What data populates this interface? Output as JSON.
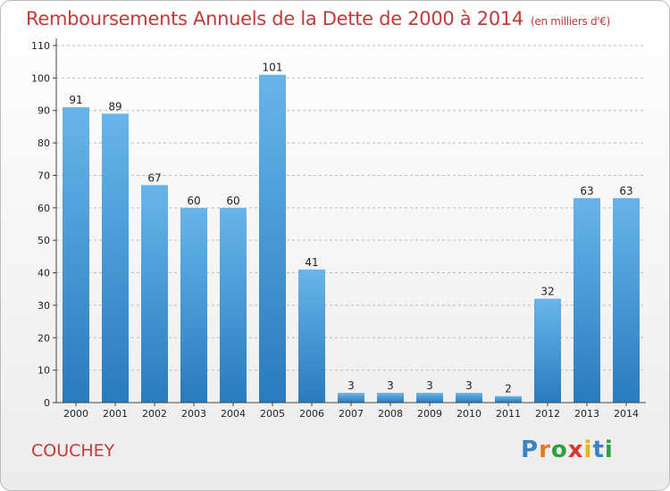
{
  "chart_data": {
    "type": "bar",
    "title": "Remboursements Annuels de la Dette de 2000 à 2014",
    "subtitle": "(en milliers d'€)",
    "categories": [
      "2000",
      "2001",
      "2002",
      "2003",
      "2004",
      "2005",
      "2006",
      "2007",
      "2008",
      "2009",
      "2010",
      "2011",
      "2012",
      "2013",
      "2014"
    ],
    "values": [
      91,
      89,
      67,
      60,
      60,
      101,
      41,
      3,
      3,
      3,
      3,
      2,
      32,
      63,
      63
    ],
    "ylim": [
      0,
      110
    ],
    "yticks": [
      0,
      10,
      20,
      30,
      40,
      50,
      60,
      70,
      80,
      90,
      100,
      110
    ],
    "grid": true,
    "xlabel": "",
    "ylabel": ""
  },
  "footer": {
    "commune": "COUCHEY",
    "brand_letters": [
      "P",
      "r",
      "o",
      "x",
      "i",
      "t",
      "i"
    ],
    "brand_colors": [
      "#3b82c4",
      "#e07b1f",
      "#2e9e44",
      "#d23a2e",
      "#e0b51f",
      "#3b82c4",
      "#2e9e44"
    ]
  },
  "colors": {
    "bar_light": "#67b5ea",
    "bar_dark": "#2a7bbd",
    "title": "#c23a3a",
    "grid": "#bdbdbd"
  }
}
